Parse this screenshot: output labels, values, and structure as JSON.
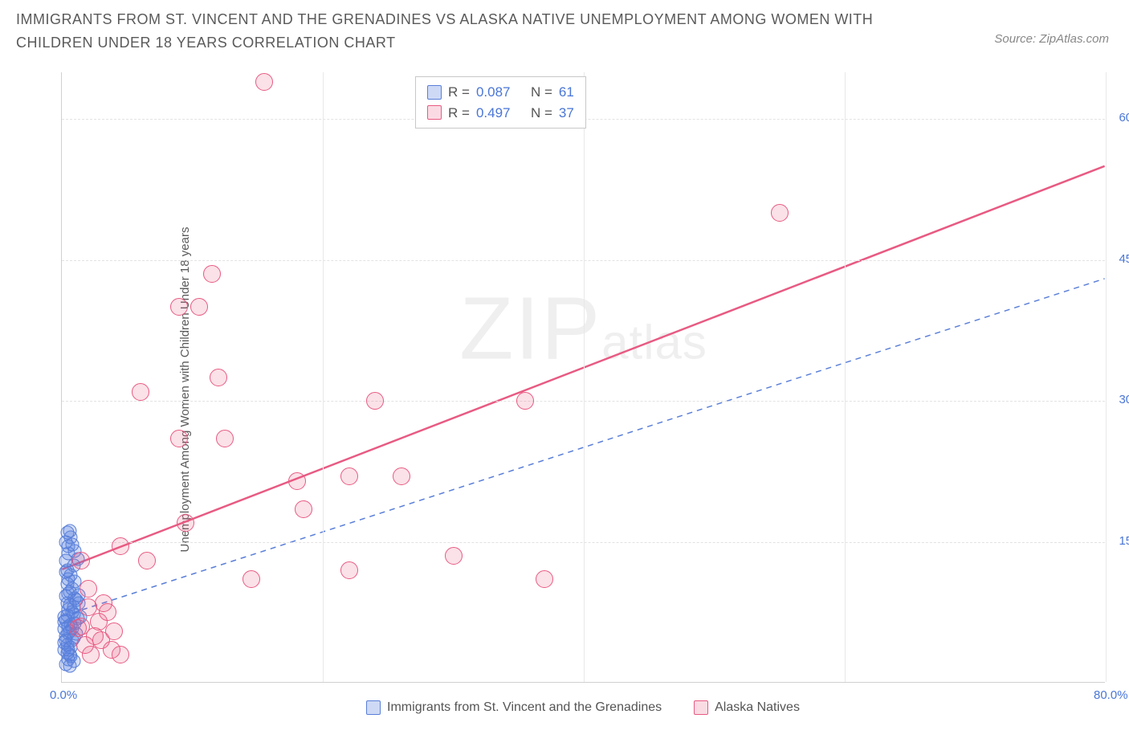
{
  "title": "IMMIGRANTS FROM ST. VINCENT AND THE GRENADINES VS ALASKA NATIVE UNEMPLOYMENT AMONG WOMEN WITH CHILDREN UNDER 18 YEARS CORRELATION CHART",
  "source_label": "Source:",
  "source_name": "ZipAtlas.com",
  "watermark_big": "ZIP",
  "watermark_small": "atlas",
  "chart": {
    "type": "scatter",
    "ylabel": "Unemployment Among Women with Children Under 18 years",
    "xlabel_items": [
      "Immigrants from St. Vincent and the Grenadines",
      "Alaska Natives"
    ],
    "xlim": [
      0,
      80
    ],
    "ylim": [
      0,
      65
    ],
    "xticks": [
      0,
      20,
      40,
      60,
      80
    ],
    "yticks": [
      15,
      30,
      45,
      60
    ],
    "xtick_labels": [
      "0.0%",
      "",
      "",
      "",
      "80.0%"
    ],
    "ytick_labels": [
      "15.0%",
      "30.0%",
      "45.0%",
      "60.0%"
    ],
    "grid_h_color": "#e2e2e2",
    "grid_v_color": "#e8e8e8",
    "background_color": "#ffffff",
    "axis_color": "#d0d0d0",
    "tick_label_color": "#4a76d6",
    "tick_fontsize": 15,
    "label_fontsize": 15,
    "series": [
      {
        "name": "blue",
        "label": "Immigrants from St. Vincent and the Grenadines",
        "R": "0.087",
        "N": "61",
        "marker_color": "#5a7fd8",
        "marker_fill": "rgba(88,128,222,0.25)",
        "marker_size": 17,
        "line_style": "dashed",
        "line_color": "#5a7fd8",
        "line_width": 1.5,
        "line": {
          "x1": 0,
          "y1": 7.0,
          "x2": 80,
          "y2": 43.0
        },
        "points": [
          [
            0.3,
            4.5
          ],
          [
            0.5,
            6.0
          ],
          [
            0.8,
            7.5
          ],
          [
            0.4,
            8.5
          ],
          [
            1.0,
            9.0
          ],
          [
            0.6,
            5.5
          ],
          [
            1.2,
            6.8
          ],
          [
            0.2,
            3.5
          ],
          [
            0.9,
            8.0
          ],
          [
            0.5,
            9.5
          ],
          [
            1.4,
            7.0
          ],
          [
            0.3,
            5.0
          ],
          [
            0.7,
            6.2
          ],
          [
            1.1,
            8.8
          ],
          [
            0.4,
            4.0
          ],
          [
            0.8,
            10.0
          ],
          [
            0.5,
            11.0
          ],
          [
            1.3,
            9.3
          ],
          [
            0.2,
            6.5
          ],
          [
            0.6,
            3.0
          ],
          [
            0.3,
            13.0
          ],
          [
            0.5,
            14.5
          ],
          [
            0.7,
            15.5
          ],
          [
            0.4,
            16.0
          ],
          [
            0.9,
            12.5
          ],
          [
            0.5,
            13.8
          ],
          [
            1.0,
            14.0
          ],
          [
            0.3,
            15.0
          ],
          [
            0.6,
            16.2
          ],
          [
            0.8,
            14.7
          ],
          [
            0.4,
            12.0
          ],
          [
            1.2,
            13.2
          ],
          [
            0.5,
            2.5
          ],
          [
            0.3,
            2.0
          ],
          [
            0.7,
            3.8
          ],
          [
            0.9,
            4.8
          ],
          [
            0.4,
            3.2
          ],
          [
            1.1,
            5.2
          ],
          [
            0.2,
            7.0
          ],
          [
            0.6,
            8.3
          ],
          [
            0.8,
            5.8
          ],
          [
            0.5,
            7.8
          ],
          [
            0.3,
            9.2
          ],
          [
            1.0,
            6.3
          ],
          [
            0.4,
            10.5
          ],
          [
            0.7,
            11.5
          ],
          [
            0.2,
            4.3
          ],
          [
            0.9,
            7.3
          ],
          [
            0.5,
            5.3
          ],
          [
            1.3,
            8.5
          ],
          [
            0.3,
            6.7
          ],
          [
            0.6,
            9.7
          ],
          [
            0.8,
            4.5
          ],
          [
            0.4,
            7.2
          ],
          [
            1.0,
            10.8
          ],
          [
            0.2,
            5.7
          ],
          [
            0.7,
            2.8
          ],
          [
            0.5,
            3.5
          ],
          [
            0.3,
            11.8
          ],
          [
            0.9,
            2.3
          ],
          [
            0.6,
            1.8
          ]
        ]
      },
      {
        "name": "pink",
        "label": "Alaska Natives",
        "R": "0.497",
        "N": "37",
        "marker_color": "#e85a82",
        "marker_fill": "rgba(232,90,130,0.18)",
        "marker_size": 22,
        "line_style": "solid",
        "line_color": "#e85a82",
        "line_width": 2.5,
        "line": {
          "x1": 0,
          "y1": 12.0,
          "x2": 80,
          "y2": 55.0
        },
        "points": [
          [
            15.5,
            64.0
          ],
          [
            55.0,
            50.0
          ],
          [
            11.5,
            43.5
          ],
          [
            9.0,
            40.0
          ],
          [
            10.5,
            40.0
          ],
          [
            12.0,
            32.5
          ],
          [
            6.0,
            31.0
          ],
          [
            24.0,
            30.0
          ],
          [
            35.5,
            30.0
          ],
          [
            9.0,
            26.0
          ],
          [
            12.5,
            26.0
          ],
          [
            18.0,
            21.5
          ],
          [
            22.0,
            22.0
          ],
          [
            26.0,
            22.0
          ],
          [
            18.5,
            18.5
          ],
          [
            9.5,
            17.0
          ],
          [
            4.5,
            14.5
          ],
          [
            6.5,
            13.0
          ],
          [
            1.5,
            13.0
          ],
          [
            30.0,
            13.5
          ],
          [
            22.0,
            12.0
          ],
          [
            14.5,
            11.0
          ],
          [
            37.0,
            11.0
          ],
          [
            2.0,
            8.0
          ],
          [
            3.5,
            7.5
          ],
          [
            2.8,
            6.5
          ],
          [
            1.5,
            6.0
          ],
          [
            4.0,
            5.5
          ],
          [
            2.5,
            5.0
          ],
          [
            3.0,
            4.5
          ],
          [
            1.8,
            4.0
          ],
          [
            3.8,
            3.5
          ],
          [
            2.2,
            3.0
          ],
          [
            1.2,
            5.8
          ],
          [
            3.2,
            8.5
          ],
          [
            4.5,
            3.0
          ],
          [
            2.0,
            10.0
          ]
        ]
      }
    ]
  },
  "legend_top_labels": {
    "R": "R =",
    "N": "N ="
  }
}
